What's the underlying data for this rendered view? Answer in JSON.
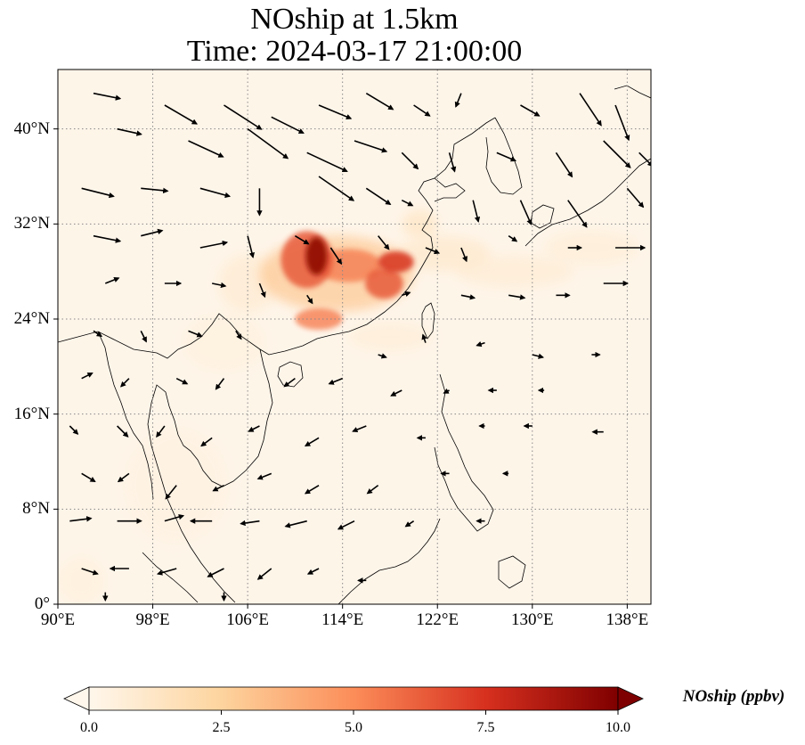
{
  "title": {
    "line1": "NOship at 1.5km",
    "line2": "Time: 2024-03-17 21:00:00"
  },
  "map": {
    "extent_lon": [
      90,
      140
    ],
    "extent_lat": [
      0,
      45
    ],
    "lat_ticks": [
      {
        "value": 0,
        "label": "0°"
      },
      {
        "value": 8,
        "label": "8°N"
      },
      {
        "value": 16,
        "label": "16°N"
      },
      {
        "value": 24,
        "label": "24°N"
      },
      {
        "value": 32,
        "label": "32°N"
      },
      {
        "value": 40,
        "label": "40°N"
      }
    ],
    "lon_ticks": [
      {
        "value": 90,
        "label": "90°E"
      },
      {
        "value": 98,
        "label": "98°E"
      },
      {
        "value": 106,
        "label": "106°E"
      },
      {
        "value": 114,
        "label": "114°E"
      },
      {
        "value": 122,
        "label": "122°E"
      },
      {
        "value": 130,
        "label": "130°E"
      },
      {
        "value": 138,
        "label": "138°E"
      }
    ],
    "gridlines": "dotted",
    "field_colors": {
      "background": "#fef5e9",
      "low": "#fde3c4",
      "mid": "#f9a35e",
      "high": "#d9451f",
      "max": "#9e0c0a"
    }
  },
  "colorbar": {
    "label": "NOship (ppbv)",
    "min": 0,
    "max": 10,
    "extend": "both",
    "colormap": "OrRd",
    "stops": [
      "#fff7ec",
      "#fdd49e",
      "#fc8d59",
      "#d7301f",
      "#7f0000"
    ],
    "ticks": [
      {
        "value": 0,
        "label": "0.0"
      },
      {
        "value": 2.5,
        "label": "2.5"
      },
      {
        "value": 5,
        "label": "5.0"
      },
      {
        "value": 7.5,
        "label": "7.5"
      },
      {
        "value": 10,
        "label": "10.0"
      }
    ]
  },
  "hotspots": [
    {
      "lon": 111.8,
      "lat": 29.3,
      "value": 9.5,
      "rx": 0.9,
      "ry": 1.6
    },
    {
      "lon": 111.0,
      "lat": 29.0,
      "value": 6.5,
      "rx": 2.2,
      "ry": 2.4
    },
    {
      "lon": 114.5,
      "lat": 28.5,
      "value": 5.5,
      "rx": 2.8,
      "ry": 1.4
    },
    {
      "lon": 118.5,
      "lat": 28.8,
      "value": 7.5,
      "rx": 1.5,
      "ry": 0.9
    },
    {
      "lon": 117.5,
      "lat": 27.0,
      "value": 6.5,
      "rx": 1.6,
      "ry": 1.3
    },
    {
      "lon": 112.0,
      "lat": 24.0,
      "value": 5.5,
      "rx": 2.0,
      "ry": 0.9
    },
    {
      "lon": 113.5,
      "lat": 27.8,
      "value": 3.0,
      "rx": 6.5,
      "ry": 3.2
    },
    {
      "lon": 122.5,
      "lat": 29.5,
      "value": 1.2,
      "rx": 4.0,
      "ry": 1.5
    },
    {
      "lon": 128.5,
      "lat": 28.0,
      "value": 0.9,
      "rx": 5.0,
      "ry": 1.4
    },
    {
      "lon": 135.0,
      "lat": 30.0,
      "value": 0.8,
      "rx": 4.0,
      "ry": 1.5
    },
    {
      "lon": 106.0,
      "lat": 27.0,
      "value": 1.0,
      "rx": 2.5,
      "ry": 2.5
    },
    {
      "lon": 118.0,
      "lat": 22.5,
      "value": 0.8,
      "rx": 3.5,
      "ry": 1.2
    },
    {
      "lon": 104.0,
      "lat": 22.0,
      "value": 0.5,
      "rx": 3.5,
      "ry": 2.5
    },
    {
      "lon": 100.0,
      "lat": 10.0,
      "value": 0.4,
      "rx": 4.5,
      "ry": 5.0
    },
    {
      "lon": 92.0,
      "lat": 2.0,
      "value": 0.6,
      "rx": 2.0,
      "ry": 2.0
    },
    {
      "lon": 120.5,
      "lat": 32.0,
      "value": 1.5,
      "rx": 1.5,
      "ry": 1.2
    }
  ],
  "wind_vectors": [
    {
      "lon": 93,
      "lat": 43,
      "u": 1.0,
      "v": -0.2
    },
    {
      "lon": 99,
      "lat": 42,
      "u": 1.2,
      "v": -0.7
    },
    {
      "lon": 104,
      "lat": 42,
      "u": 1.4,
      "v": -0.9
    },
    {
      "lon": 108,
      "lat": 41,
      "u": 1.2,
      "v": -0.6
    },
    {
      "lon": 112,
      "lat": 42,
      "u": 1.2,
      "v": -0.5
    },
    {
      "lon": 116,
      "lat": 43,
      "u": 1.0,
      "v": -0.6
    },
    {
      "lon": 120,
      "lat": 42,
      "u": 0.6,
      "v": -0.4
    },
    {
      "lon": 124,
      "lat": 43,
      "u": -0.2,
      "v": -0.5
    },
    {
      "lon": 129,
      "lat": 42,
      "u": 0.7,
      "v": -0.4
    },
    {
      "lon": 134,
      "lat": 43,
      "u": 0.8,
      "v": -1.2
    },
    {
      "lon": 137,
      "lat": 42,
      "u": 0.5,
      "v": -1.3
    },
    {
      "lon": 95,
      "lat": 40,
      "u": 0.9,
      "v": -0.2
    },
    {
      "lon": 101,
      "lat": 39,
      "u": 1.3,
      "v": -0.6
    },
    {
      "lon": 106,
      "lat": 40,
      "u": 1.5,
      "v": -1.1
    },
    {
      "lon": 111,
      "lat": 38,
      "u": 1.5,
      "v": -0.7
    },
    {
      "lon": 115,
      "lat": 39,
      "u": 1.2,
      "v": -0.4
    },
    {
      "lon": 119,
      "lat": 38,
      "u": 0.6,
      "v": -0.6
    },
    {
      "lon": 123,
      "lat": 38,
      "u": 0.2,
      "v": -0.7
    },
    {
      "lon": 127,
      "lat": 38,
      "u": 0.7,
      "v": -0.3
    },
    {
      "lon": 132,
      "lat": 38,
      "u": 0.6,
      "v": -0.9
    },
    {
      "lon": 136,
      "lat": 39,
      "u": 1.0,
      "v": -1.0
    },
    {
      "lon": 139,
      "lat": 38,
      "u": 0.5,
      "v": -0.5
    },
    {
      "lon": 92,
      "lat": 35,
      "u": 1.2,
      "v": -0.3
    },
    {
      "lon": 97,
      "lat": 35,
      "u": 1.0,
      "v": -0.1
    },
    {
      "lon": 102,
      "lat": 35,
      "u": 1.1,
      "v": -0.3
    },
    {
      "lon": 107,
      "lat": 35,
      "u": 0.0,
      "v": -1.0
    },
    {
      "lon": 112,
      "lat": 36,
      "u": 1.3,
      "v": -0.9
    },
    {
      "lon": 116,
      "lat": 35,
      "u": 0.9,
      "v": -0.6
    },
    {
      "lon": 119,
      "lat": 34,
      "u": 0.4,
      "v": -0.2
    },
    {
      "lon": 125,
      "lat": 34,
      "u": 0.2,
      "v": -0.8
    },
    {
      "lon": 129,
      "lat": 34,
      "u": 0.4,
      "v": -0.9
    },
    {
      "lon": 133,
      "lat": 34,
      "u": 0.7,
      "v": -1.0
    },
    {
      "lon": 138,
      "lat": 35,
      "u": 0.6,
      "v": -0.7
    },
    {
      "lon": 93,
      "lat": 31,
      "u": 1.0,
      "v": -0.2
    },
    {
      "lon": 97,
      "lat": 31,
      "u": 0.8,
      "v": 0.2
    },
    {
      "lon": 102,
      "lat": 30,
      "u": 1.0,
      "v": 0.2
    },
    {
      "lon": 106,
      "lat": 31,
      "u": 0.2,
      "v": -0.8
    },
    {
      "lon": 110,
      "lat": 31,
      "u": 0.5,
      "v": -0.3
    },
    {
      "lon": 113,
      "lat": 30,
      "u": 0.4,
      "v": -0.6
    },
    {
      "lon": 117,
      "lat": 31,
      "u": 0.4,
      "v": -0.5
    },
    {
      "lon": 121,
      "lat": 30,
      "u": 0.5,
      "v": -0.2
    },
    {
      "lon": 124,
      "lat": 30,
      "u": 0.2,
      "v": -0.5
    },
    {
      "lon": 128,
      "lat": 31,
      "u": 0.3,
      "v": -0.2
    },
    {
      "lon": 133,
      "lat": 30,
      "u": 0.5,
      "v": 0.0
    },
    {
      "lon": 137,
      "lat": 30,
      "u": 1.1,
      "v": 0.0
    },
    {
      "lon": 94,
      "lat": 27,
      "u": 0.5,
      "v": 0.2
    },
    {
      "lon": 99,
      "lat": 27,
      "u": 0.6,
      "v": 0.0
    },
    {
      "lon": 103,
      "lat": 27,
      "u": 0.5,
      "v": -0.1
    },
    {
      "lon": 107,
      "lat": 27,
      "u": 0.2,
      "v": -0.5
    },
    {
      "lon": 111,
      "lat": 26,
      "u": 0.2,
      "v": -0.3
    },
    {
      "lon": 119,
      "lat": 26,
      "u": 0.3,
      "v": 0.1
    },
    {
      "lon": 124,
      "lat": 26,
      "u": 0.5,
      "v": -0.1
    },
    {
      "lon": 128,
      "lat": 26,
      "u": 0.6,
      "v": -0.1
    },
    {
      "lon": 132,
      "lat": 26,
      "u": 0.5,
      "v": 0.0
    },
    {
      "lon": 136,
      "lat": 27,
      "u": 0.9,
      "v": 0.0
    },
    {
      "lon": 93,
      "lat": 23,
      "u": 0.3,
      "v": -0.2
    },
    {
      "lon": 97,
      "lat": 23,
      "u": 0.2,
      "v": -0.4
    },
    {
      "lon": 101,
      "lat": 23,
      "u": 0.5,
      "v": -0.2
    },
    {
      "lon": 105,
      "lat": 23,
      "u": 0.2,
      "v": -0.3
    },
    {
      "lon": 117,
      "lat": 21,
      "u": 0.3,
      "v": -0.1
    },
    {
      "lon": 121,
      "lat": 22,
      "u": -0.1,
      "v": 0.3
    },
    {
      "lon": 126,
      "lat": 22,
      "u": -0.3,
      "v": -0.1
    },
    {
      "lon": 130,
      "lat": 21,
      "u": 0.4,
      "v": -0.1
    },
    {
      "lon": 135,
      "lat": 21,
      "u": 0.3,
      "v": 0.0
    },
    {
      "lon": 92,
      "lat": 19,
      "u": 0.4,
      "v": 0.2
    },
    {
      "lon": 96,
      "lat": 19,
      "u": -0.3,
      "v": -0.3
    },
    {
      "lon": 100,
      "lat": 19,
      "u": 0.4,
      "v": -0.2
    },
    {
      "lon": 104,
      "lat": 19,
      "u": -0.3,
      "v": -0.4
    },
    {
      "lon": 110,
      "lat": 19,
      "u": -0.4,
      "v": -0.3
    },
    {
      "lon": 114,
      "lat": 19,
      "u": -0.5,
      "v": -0.2
    },
    {
      "lon": 119,
      "lat": 18,
      "u": -0.4,
      "v": -0.2
    },
    {
      "lon": 123,
      "lat": 18,
      "u": -0.2,
      "v": -0.1
    },
    {
      "lon": 127,
      "lat": 18,
      "u": -0.3,
      "v": 0.0
    },
    {
      "lon": 131,
      "lat": 18,
      "u": -0.2,
      "v": 0.0
    },
    {
      "lon": 91,
      "lat": 15,
      "u": 0.3,
      "v": -0.3
    },
    {
      "lon": 95,
      "lat": 15,
      "u": 0.4,
      "v": -0.4
    },
    {
      "lon": 99,
      "lat": 15,
      "u": -0.3,
      "v": -0.4
    },
    {
      "lon": 103,
      "lat": 14,
      "u": -0.4,
      "v": -0.3
    },
    {
      "lon": 107,
      "lat": 15,
      "u": -0.4,
      "v": -0.2
    },
    {
      "lon": 112,
      "lat": 14,
      "u": -0.5,
      "v": -0.3
    },
    {
      "lon": 116,
      "lat": 15,
      "u": -0.5,
      "v": -0.2
    },
    {
      "lon": 121,
      "lat": 14,
      "u": -0.3,
      "v": 0.0
    },
    {
      "lon": 126,
      "lat": 15,
      "u": -0.2,
      "v": 0.0
    },
    {
      "lon": 130,
      "lat": 15,
      "u": -0.3,
      "v": 0.0
    },
    {
      "lon": 136,
      "lat": 14.5,
      "u": -0.4,
      "v": 0.0
    },
    {
      "lon": 92,
      "lat": 11,
      "u": 0.5,
      "v": -0.3
    },
    {
      "lon": 96,
      "lat": 11,
      "u": -0.4,
      "v": -0.3
    },
    {
      "lon": 100,
      "lat": 10,
      "u": -0.4,
      "v": -0.5
    },
    {
      "lon": 104,
      "lat": 10,
      "u": -0.4,
      "v": -0.2
    },
    {
      "lon": 108,
      "lat": 11,
      "u": -0.5,
      "v": -0.2
    },
    {
      "lon": 112,
      "lat": 10,
      "u": -0.5,
      "v": -0.3
    },
    {
      "lon": 117,
      "lat": 10,
      "u": -0.4,
      "v": -0.3
    },
    {
      "lon": 123,
      "lat": 11,
      "u": -0.3,
      "v": 0.0
    },
    {
      "lon": 128,
      "lat": 11,
      "u": -0.2,
      "v": 0.0
    },
    {
      "lon": 91,
      "lat": 7,
      "u": 0.8,
      "v": 0.1
    },
    {
      "lon": 95,
      "lat": 7,
      "u": 0.9,
      "v": 0.0
    },
    {
      "lon": 99,
      "lat": 7,
      "u": 0.7,
      "v": 0.2
    },
    {
      "lon": 103,
      "lat": 7,
      "u": -0.8,
      "v": 0.0
    },
    {
      "lon": 107,
      "lat": 7,
      "u": -0.7,
      "v": -0.1
    },
    {
      "lon": 111,
      "lat": 7,
      "u": -0.8,
      "v": -0.2
    },
    {
      "lon": 115,
      "lat": 7,
      "u": -0.6,
      "v": -0.3
    },
    {
      "lon": 120,
      "lat": 7,
      "u": -0.3,
      "v": -0.2
    },
    {
      "lon": 126,
      "lat": 7,
      "u": -0.3,
      "v": 0.0
    },
    {
      "lon": 92,
      "lat": 3,
      "u": 0.6,
      "v": -0.2
    },
    {
      "lon": 96,
      "lat": 3,
      "u": -0.7,
      "v": 0.0
    },
    {
      "lon": 100,
      "lat": 3,
      "u": -0.7,
      "v": -0.2
    },
    {
      "lon": 104,
      "lat": 3,
      "u": -0.6,
      "v": -0.3
    },
    {
      "lon": 108,
      "lat": 3,
      "u": -0.5,
      "v": -0.4
    },
    {
      "lon": 112,
      "lat": 3,
      "u": -0.4,
      "v": -0.2
    },
    {
      "lon": 116,
      "lat": 2,
      "u": -0.3,
      "v": 0.0
    },
    {
      "lon": 94,
      "lat": 1,
      "u": 0.0,
      "v": -0.3
    },
    {
      "lon": 104,
      "lat": 1,
      "u": 0.0,
      "v": -0.3
    }
  ]
}
